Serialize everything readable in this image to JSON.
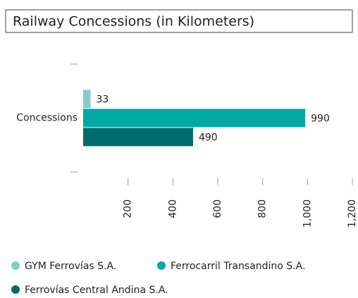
{
  "chart_data": {
    "type": "bar",
    "orientation": "horizontal",
    "title": "Railway Concessions (in Kilometers)",
    "categories": [
      "Concessions"
    ],
    "series": [
      {
        "name": "GYM Ferrovías S.A.",
        "color": "#7fcfc8",
        "values": [
          33
        ]
      },
      {
        "name": "Ferrocarril Transandino S.A.",
        "color": "#00a9a5",
        "values": [
          990
        ]
      },
      {
        "name": "Ferrovías Central Andina S.A.",
        "color": "#006b6e",
        "values": [
          490
        ]
      }
    ],
    "xlim": [
      0,
      1200
    ],
    "xticks": [
      200,
      400,
      600,
      800,
      {
        "value": 1000,
        "label": "1,000"
      },
      {
        "value": 1200,
        "label": "1,200"
      }
    ],
    "legend": "bottom"
  }
}
